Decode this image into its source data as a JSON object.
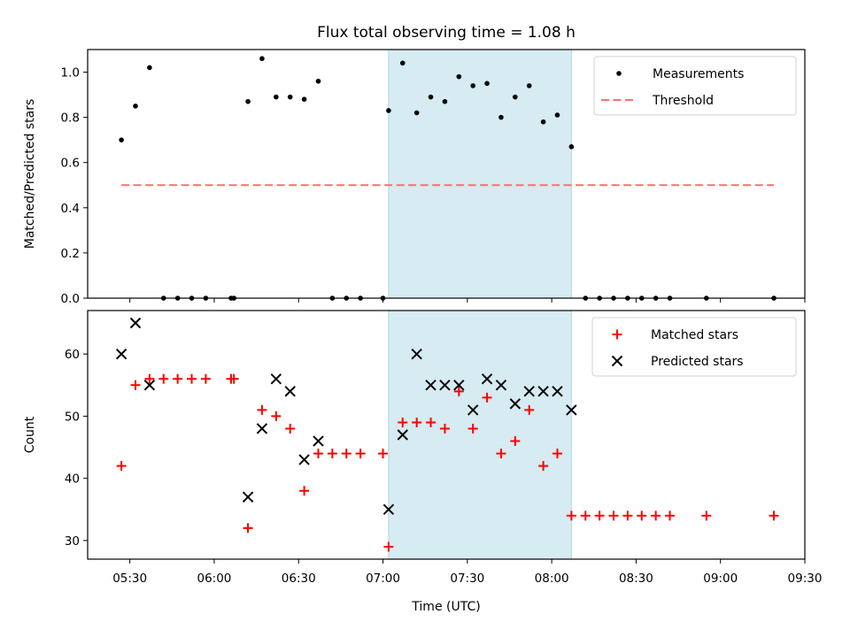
{
  "chart_data": [
    {
      "type": "scatter",
      "title": "Flux total observing time = 1.08 h",
      "xlabel": "",
      "ylabel": "Matched/Predicted stars",
      "xlim": [
        "05:15",
        "09:30"
      ],
      "ylim": [
        0,
        1.1
      ],
      "yticks": [
        0.0,
        0.2,
        0.4,
        0.6,
        0.8,
        1.0
      ],
      "ytick_labels": [
        "0.0",
        "0.2",
        "0.4",
        "0.6",
        "0.8",
        "1.0"
      ],
      "shaded_interval": [
        "07:02",
        "08:07"
      ],
      "shade_color": "#add8e6",
      "legend_position": "top-right",
      "grid": false,
      "series": [
        {
          "name": "Measurements",
          "style": "dot",
          "color": "#000000",
          "points": [
            [
              "05:27",
              0.7
            ],
            [
              "05:32",
              0.85
            ],
            [
              "05:37",
              1.02
            ],
            [
              "05:42",
              0.0
            ],
            [
              "05:47",
              0.0
            ],
            [
              "05:52",
              0.0
            ],
            [
              "05:57",
              0.0
            ],
            [
              "06:06",
              0.0
            ],
            [
              "06:07",
              0.0
            ],
            [
              "06:12",
              0.87
            ],
            [
              "06:17",
              1.06
            ],
            [
              "06:22",
              0.89
            ],
            [
              "06:27",
              0.89
            ],
            [
              "06:32",
              0.88
            ],
            [
              "06:37",
              0.96
            ],
            [
              "06:42",
              0.0
            ],
            [
              "06:47",
              0.0
            ],
            [
              "06:52",
              0.0
            ],
            [
              "07:00",
              0.0
            ],
            [
              "07:02",
              0.83
            ],
            [
              "07:07",
              1.04
            ],
            [
              "07:12",
              0.82
            ],
            [
              "07:17",
              0.89
            ],
            [
              "07:22",
              0.87
            ],
            [
              "07:27",
              0.98
            ],
            [
              "07:32",
              0.94
            ],
            [
              "07:37",
              0.95
            ],
            [
              "07:42",
              0.8
            ],
            [
              "07:47",
              0.89
            ],
            [
              "07:52",
              0.94
            ],
            [
              "07:57",
              0.78
            ],
            [
              "08:02",
              0.81
            ],
            [
              "08:07",
              0.67
            ],
            [
              "08:12",
              0.0
            ],
            [
              "08:17",
              0.0
            ],
            [
              "08:22",
              0.0
            ],
            [
              "08:27",
              0.0
            ],
            [
              "08:32",
              0.0
            ],
            [
              "08:37",
              0.0
            ],
            [
              "08:42",
              0.0
            ],
            [
              "08:55",
              0.0
            ],
            [
              "09:19",
              0.0
            ]
          ]
        },
        {
          "name": "Threshold",
          "style": "dashed-line",
          "color": "#ff7070",
          "points": [
            [
              "05:27",
              0.5
            ],
            [
              "09:19",
              0.5
            ]
          ]
        }
      ]
    },
    {
      "type": "scatter",
      "title": "",
      "xlabel": "Time (UTC)",
      "ylabel": "Count",
      "xlim": [
        "05:15",
        "09:30"
      ],
      "ylim": [
        27,
        67
      ],
      "yticks": [
        30,
        40,
        50,
        60
      ],
      "ytick_labels": [
        "30",
        "40",
        "50",
        "60"
      ],
      "xticks": [
        "05:30",
        "06:00",
        "06:30",
        "07:00",
        "07:30",
        "08:00",
        "08:30",
        "09:00",
        "09:30"
      ],
      "shaded_interval": [
        "07:02",
        "08:07"
      ],
      "shade_color": "#add8e6",
      "legend_position": "top-right",
      "grid": false,
      "series": [
        {
          "name": "Matched stars",
          "style": "plus",
          "color": "#ff0000",
          "points": [
            [
              "05:27",
              42
            ],
            [
              "05:32",
              55
            ],
            [
              "05:37",
              56
            ],
            [
              "05:42",
              56
            ],
            [
              "05:47",
              56
            ],
            [
              "05:52",
              56
            ],
            [
              "05:57",
              56
            ],
            [
              "06:06",
              56
            ],
            [
              "06:07",
              56
            ],
            [
              "06:12",
              32
            ],
            [
              "06:17",
              51
            ],
            [
              "06:22",
              50
            ],
            [
              "06:27",
              48
            ],
            [
              "06:32",
              38
            ],
            [
              "06:37",
              44
            ],
            [
              "06:42",
              44
            ],
            [
              "06:47",
              44
            ],
            [
              "06:52",
              44
            ],
            [
              "07:00",
              44
            ],
            [
              "07:02",
              29
            ],
            [
              "07:07",
              49
            ],
            [
              "07:12",
              49
            ],
            [
              "07:17",
              49
            ],
            [
              "07:22",
              48
            ],
            [
              "07:27",
              54
            ],
            [
              "07:32",
              48
            ],
            [
              "07:37",
              53
            ],
            [
              "07:42",
              44
            ],
            [
              "07:47",
              46
            ],
            [
              "07:52",
              51
            ],
            [
              "07:57",
              42
            ],
            [
              "08:02",
              44
            ],
            [
              "08:07",
              34
            ],
            [
              "08:12",
              34
            ],
            [
              "08:17",
              34
            ],
            [
              "08:22",
              34
            ],
            [
              "08:27",
              34
            ],
            [
              "08:32",
              34
            ],
            [
              "08:37",
              34
            ],
            [
              "08:42",
              34
            ],
            [
              "08:55",
              34
            ],
            [
              "09:19",
              34
            ]
          ]
        },
        {
          "name": "Predicted stars",
          "style": "x",
          "color": "#000000",
          "points": [
            [
              "05:27",
              60
            ],
            [
              "05:32",
              65
            ],
            [
              "05:37",
              55
            ],
            [
              "06:12",
              37
            ],
            [
              "06:17",
              48
            ],
            [
              "06:22",
              56
            ],
            [
              "06:27",
              54
            ],
            [
              "06:32",
              43
            ],
            [
              "06:37",
              46
            ],
            [
              "07:02",
              35
            ],
            [
              "07:07",
              47
            ],
            [
              "07:12",
              60
            ],
            [
              "07:17",
              55
            ],
            [
              "07:22",
              55
            ],
            [
              "07:27",
              55
            ],
            [
              "07:32",
              51
            ],
            [
              "07:37",
              56
            ],
            [
              "07:42",
              55
            ],
            [
              "07:47",
              52
            ],
            [
              "07:52",
              54
            ],
            [
              "07:57",
              54
            ],
            [
              "08:02",
              54
            ],
            [
              "08:07",
              51
            ]
          ]
        }
      ]
    }
  ]
}
